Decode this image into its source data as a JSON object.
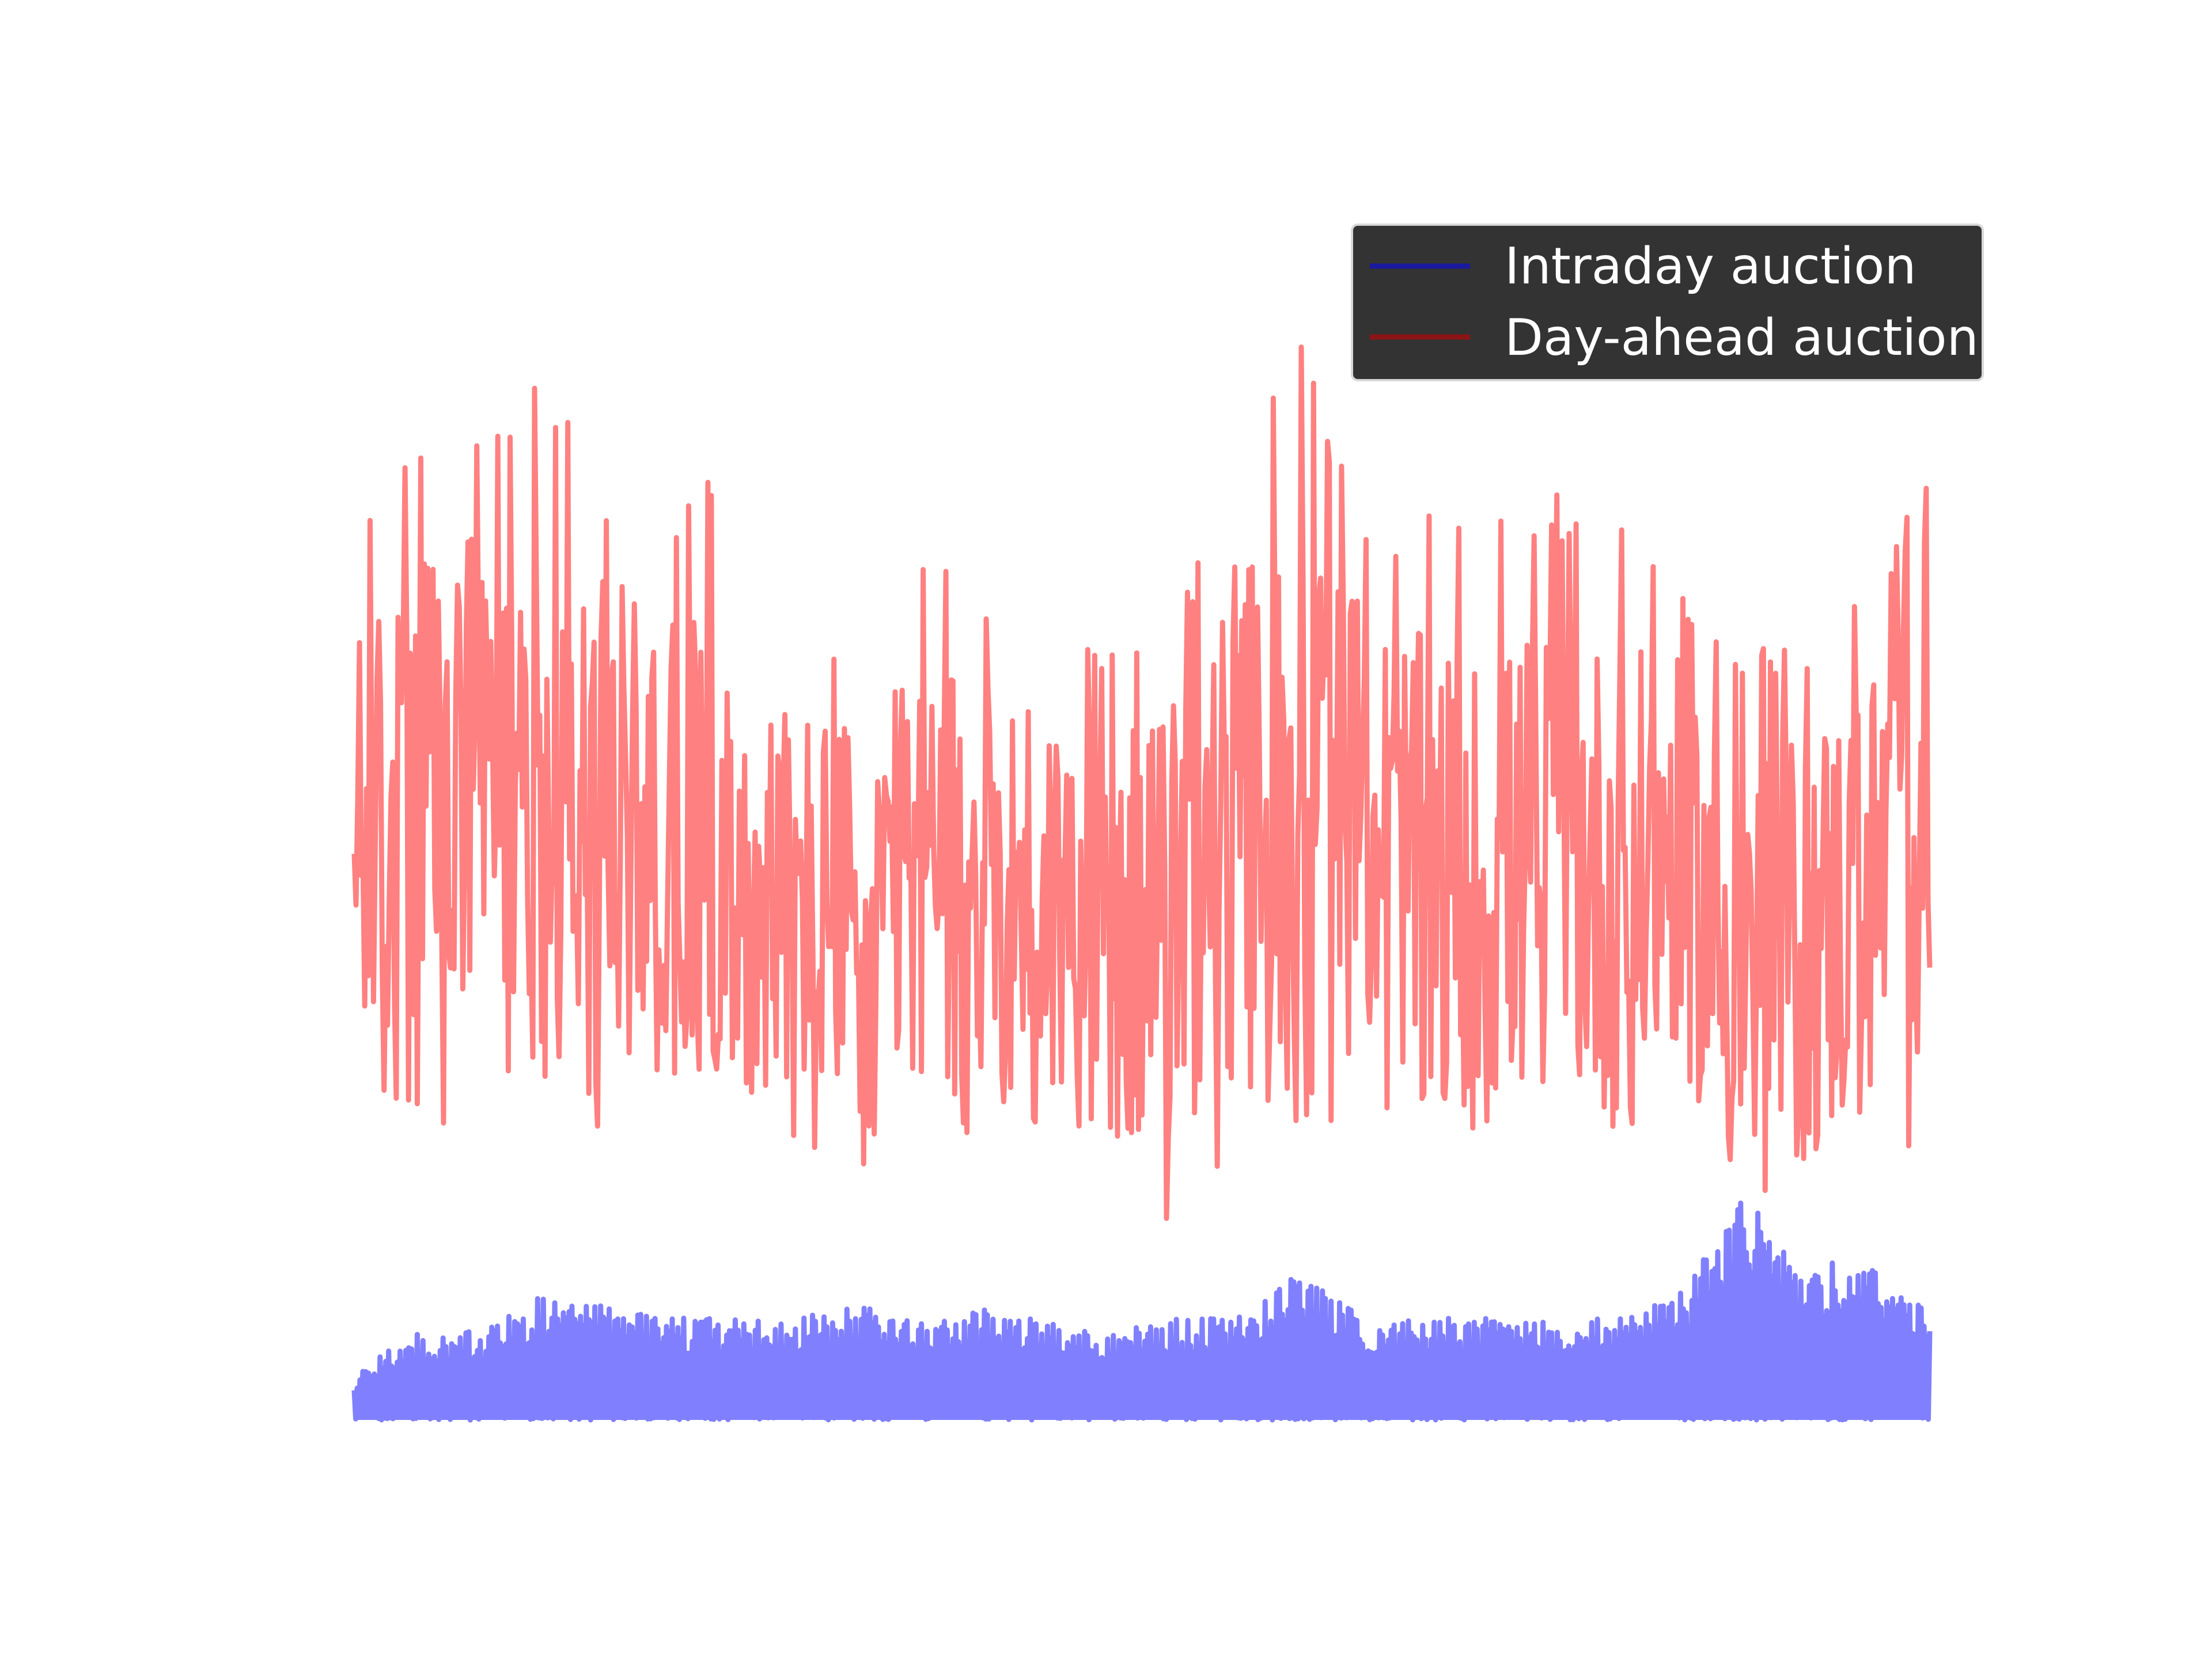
{
  "chart_data": {
    "type": "line",
    "title": "",
    "xlabel": "",
    "ylabel": "",
    "axes_visible": false,
    "grid": false,
    "legend": {
      "position": "top-right",
      "background": "#333333",
      "entries": [
        {
          "label": "Intraday auction",
          "color": "#1a1a9e"
        },
        {
          "label": "Day-ahead auction",
          "color": "#8b1414"
        }
      ]
    },
    "x_range": [
      0,
      1
    ],
    "ylim": [
      0,
      100
    ],
    "series": [
      {
        "name": "Day-ahead auction",
        "color": "#ff8080",
        "style": "noisy line, oscillating around a slowly varying mean",
        "x": [
          0.0,
          0.04,
          0.08,
          0.12,
          0.16,
          0.2,
          0.24,
          0.28,
          0.32,
          0.36,
          0.4,
          0.44,
          0.48,
          0.52,
          0.56,
          0.6,
          0.64,
          0.68,
          0.72,
          0.76,
          0.8,
          0.84,
          0.88,
          0.92,
          0.96,
          1.0
        ],
        "mean": [
          50,
          54,
          55,
          53,
          52,
          54,
          47,
          46,
          44,
          48,
          47,
          46,
          42,
          44,
          52,
          54,
          53,
          49,
          46,
          51,
          47,
          50,
          38,
          42,
          46,
          56
        ],
        "min": [
          28,
          24,
          26,
          30,
          23,
          28,
          32,
          22,
          21,
          30,
          22,
          26,
          22,
          16,
          24,
          25,
          27,
          27,
          22,
          27,
          23,
          30,
          16,
          17,
          20,
          22
        ],
        "max": [
          78,
          86,
          89,
          92,
          83,
          80,
          85,
          68,
          70,
          78,
          72,
          77,
          68,
          69,
          88,
          97,
          78,
          81,
          79,
          82,
          80,
          76,
          68,
          70,
          73,
          84
        ]
      },
      {
        "name": "Intraday auction",
        "color": "#8080ff",
        "style": "dense noisy band near the bottom",
        "x": [
          0.0,
          0.04,
          0.08,
          0.12,
          0.16,
          0.2,
          0.24,
          0.28,
          0.32,
          0.36,
          0.4,
          0.44,
          0.48,
          0.52,
          0.56,
          0.6,
          0.64,
          0.68,
          0.72,
          0.76,
          0.8,
          0.84,
          0.88,
          0.92,
          0.96,
          1.0
        ],
        "min": [
          0,
          0,
          0,
          0,
          0,
          0,
          0,
          0,
          0,
          0,
          0,
          0,
          0,
          0,
          0,
          0,
          0,
          0,
          0,
          0,
          0,
          0,
          0,
          0,
          0,
          0
        ],
        "max": [
          4,
          8,
          8,
          11,
          10,
          9,
          9,
          9,
          10,
          9,
          10,
          9,
          8,
          9,
          9,
          13,
          9,
          9,
          9,
          9,
          9,
          11,
          20,
          14,
          14,
          10
        ]
      }
    ]
  }
}
